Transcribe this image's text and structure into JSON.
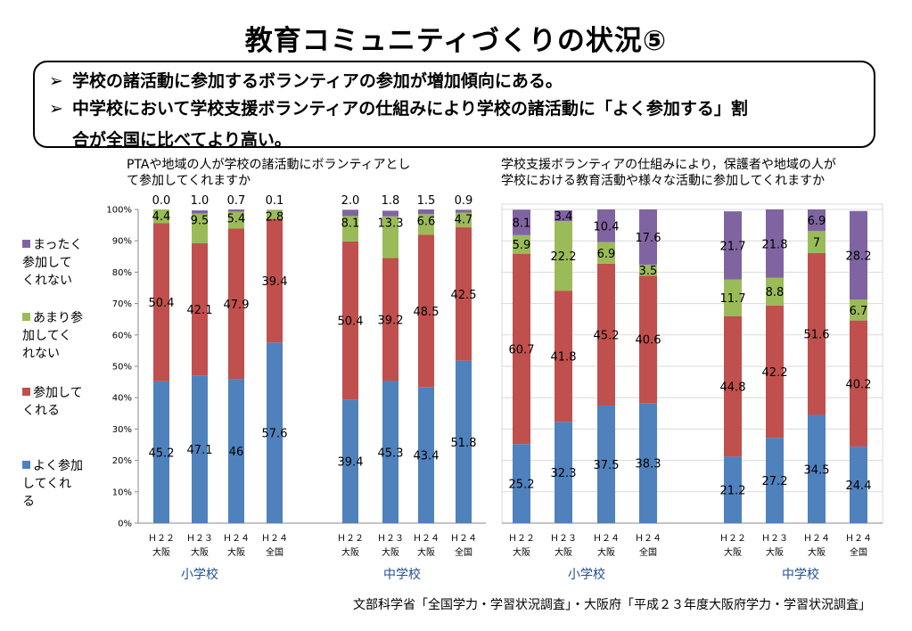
{
  "title": "教育コミュニティづくりの状況⑤",
  "summary": {
    "bullet_mark": "➢",
    "line1": "学校の諸活動に参加するボランティアの参加が増加傾向にある。",
    "line2a": "中学校において学校支援ボランティアの仕組みにより学校の諸活動に「よく参加する」割",
    "line2b": "合が全国に比べてより高い。"
  },
  "legend": [
    {
      "label": "まったく参加してくれない",
      "lines": [
        "まったく",
        "参加して",
        "くれない"
      ],
      "color": "#8064a2"
    },
    {
      "label": "あまり参加してくれない",
      "lines": [
        "あまり参",
        "加してく",
        "れない"
      ],
      "color": "#9bbb59"
    },
    {
      "label": "参加してくれる",
      "lines": [
        "参加して",
        "くれる"
      ],
      "color": "#c0504d"
    },
    {
      "label": "よく参加してくれる",
      "lines": [
        "よく参加",
        "してくれ",
        "る"
      ],
      "color": "#4f81bd"
    }
  ],
  "source": "文部科学省「全国学力・学習状況調査」・大阪府「平成２３年度大阪府学力・学習状況調査」",
  "chart_data": [
    {
      "type": "bar",
      "stacked": true,
      "title": "PTAや地域の人が学校の諸活動にボランティアとして参加してくれますか",
      "title_lines": [
        "PTAや地域の人が学校の諸活動にボランティアとし",
        "て参加してくれますか"
      ],
      "ylim": [
        0,
        100
      ],
      "yticks": [
        "0%",
        "10%",
        "20%",
        "30%",
        "40%",
        "50%",
        "60%",
        "70%",
        "80%",
        "90%",
        "100%"
      ],
      "grid": false,
      "categories": [
        [
          "Ｈ２２",
          "大阪"
        ],
        [
          "Ｈ２３",
          "大阪"
        ],
        [
          "Ｈ２４",
          "大阪"
        ],
        [
          "Ｈ２４",
          "全国"
        ],
        [
          "Ｈ２２",
          "大阪"
        ],
        [
          "Ｈ２３",
          "大阪"
        ],
        [
          "Ｈ２４",
          "大阪"
        ],
        [
          "Ｈ２４",
          "全国"
        ]
      ],
      "groups": [
        "小学校",
        "中学校"
      ],
      "series": [
        {
          "name": "よく参加してくれる",
          "values": [
            45.2,
            47.1,
            46,
            57.6,
            39.4,
            45.3,
            43.4,
            51.8
          ],
          "labels": [
            "45.2",
            "47.1",
            "46",
            "57.6",
            "39.4",
            "45.3",
            "43.4",
            "51.8"
          ]
        },
        {
          "name": "参加してくれる",
          "values": [
            50.4,
            42.1,
            47.9,
            39.4,
            50.4,
            39.2,
            48.5,
            42.5
          ],
          "labels": [
            "50.4",
            "42.1",
            "47.9",
            "39.4",
            "50.4",
            "39.2",
            "48.5",
            "42.5"
          ]
        },
        {
          "name": "あまり参加してくれない",
          "values": [
            4.4,
            9.5,
            5.4,
            2.8,
            8.1,
            13.3,
            6.6,
            4.7
          ],
          "labels": [
            "4.4",
            "9.5",
            "5.4",
            "2.8",
            "8.1",
            "13.3",
            "6.6",
            "4.7"
          ]
        },
        {
          "name": "まったく参加してくれない",
          "values": [
            0.0,
            1.0,
            0.7,
            0.1,
            2.0,
            1.8,
            1.5,
            0.9
          ],
          "labels": [
            "0.0",
            "1.0",
            "0.7",
            "0.1",
            "2.0",
            "1.8",
            "1.5",
            "0.9"
          ]
        }
      ]
    },
    {
      "type": "bar",
      "stacked": true,
      "title": "学校支援ボランティアの仕組みにより，保護者や地域の人が学校における教育活動や様々な活動に参加してくれますか",
      "title_lines": [
        "学校支援ボランティアの仕組みにより，保護者や地域の人が",
        "学校における教育活動や様々な活動に参加してくれますか"
      ],
      "ylim": [
        0,
        100
      ],
      "grid": true,
      "categories": [
        [
          "Ｈ２２",
          "大阪"
        ],
        [
          "Ｈ２３",
          "大阪"
        ],
        [
          "Ｈ２４",
          "大阪"
        ],
        [
          "Ｈ２４",
          "全国"
        ],
        [
          "Ｈ２２",
          "大阪"
        ],
        [
          "Ｈ２３",
          "大阪"
        ],
        [
          "Ｈ２４",
          "大阪"
        ],
        [
          "Ｈ２４",
          "全国"
        ]
      ],
      "groups": [
        "小学校",
        "中学校"
      ],
      "series": [
        {
          "name": "よく参加してくれる",
          "values": [
            25.2,
            32.3,
            37.5,
            38.3,
            21.2,
            27.2,
            34.5,
            24.4
          ],
          "labels": [
            "25.2",
            "32.3",
            "37.5",
            "38.3",
            "21.2",
            "27.2",
            "34.5",
            "24.4"
          ]
        },
        {
          "name": "参加してくれる",
          "values": [
            60.7,
            41.8,
            45.2,
            40.6,
            44.8,
            42.2,
            51.6,
            40.2
          ],
          "labels": [
            "60.7",
            "41.8",
            "45.2",
            "40.6",
            "44.8",
            "42.2",
            "51.6",
            "40.2"
          ]
        },
        {
          "name": "あまり参加してくれない",
          "values": [
            5.9,
            22.2,
            6.9,
            3.5,
            11.7,
            8.8,
            7,
            6.7
          ],
          "labels": [
            "5.9",
            "22.2",
            "6.9",
            "3.5",
            "11.7",
            "8.8",
            "7",
            "6.7"
          ]
        },
        {
          "name": "まったく参加してくれない",
          "values": [
            8.1,
            3.4,
            10.4,
            17.6,
            21.7,
            21.8,
            6.9,
            28.2
          ],
          "labels": [
            "8.1",
            "3.4",
            "10.4",
            "17.6",
            "21.7",
            "21.8",
            "6.9",
            "28.2"
          ]
        }
      ]
    }
  ]
}
